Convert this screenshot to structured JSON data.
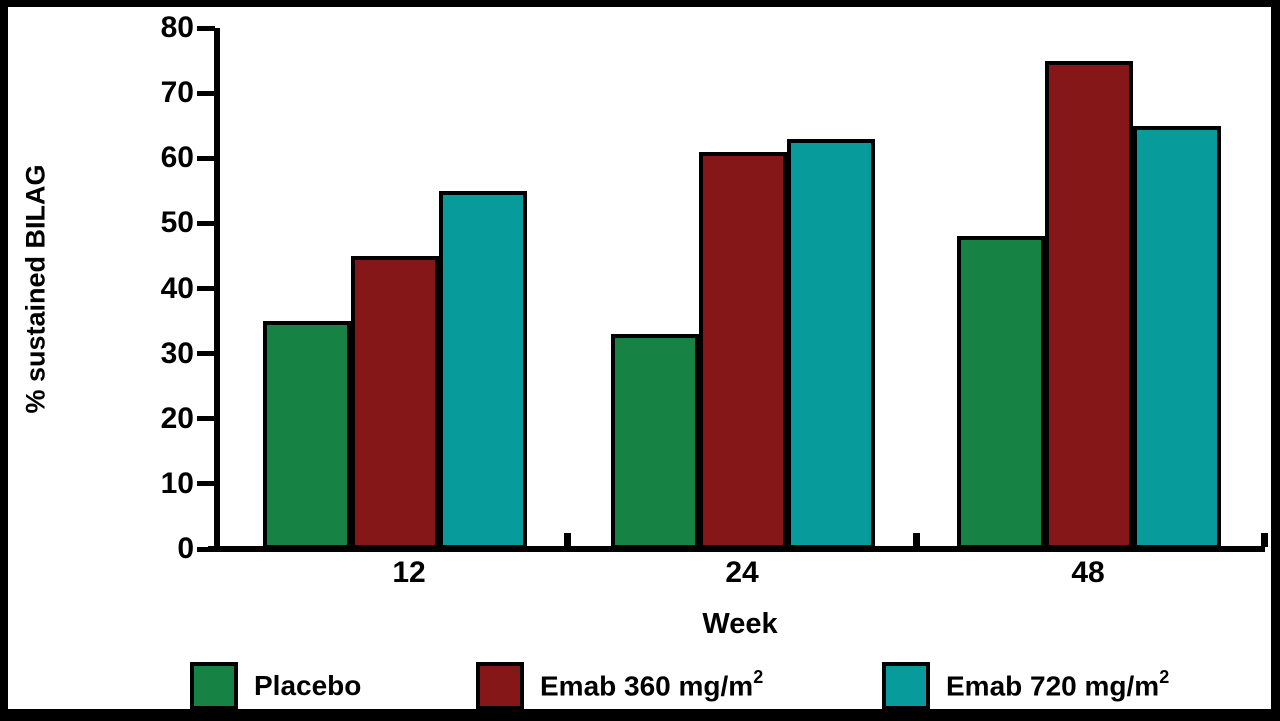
{
  "figure": {
    "background": "#ffffff",
    "frame_color": "#000000"
  },
  "chart_data": {
    "type": "bar",
    "title": "",
    "categories": [
      "12",
      "24",
      "48"
    ],
    "series": [
      {
        "name": "Placebo",
        "label_base": "Placebo",
        "exponent": "",
        "color": "#168244",
        "values": [
          35,
          33,
          48
        ]
      },
      {
        "name": "Emab 360 mg/m²",
        "label_base": "Emab 360 mg/m",
        "exponent": "2",
        "color": "#851718",
        "values": [
          45,
          61,
          75
        ]
      },
      {
        "name": "Emab 720 mg/m²",
        "label_base": "Emab 720 mg/m",
        "exponent": "2",
        "color": "#089B9B",
        "values": [
          55,
          63,
          65
        ]
      }
    ],
    "xlabel": "Week",
    "ylabel": "% sustained BILAG",
    "ylim": [
      0,
      80
    ],
    "yticks": [
      0,
      10,
      20,
      30,
      40,
      50,
      60,
      70,
      80
    ],
    "grid": false,
    "legend_position": "bottom",
    "bar_outline_color": "#000000"
  }
}
